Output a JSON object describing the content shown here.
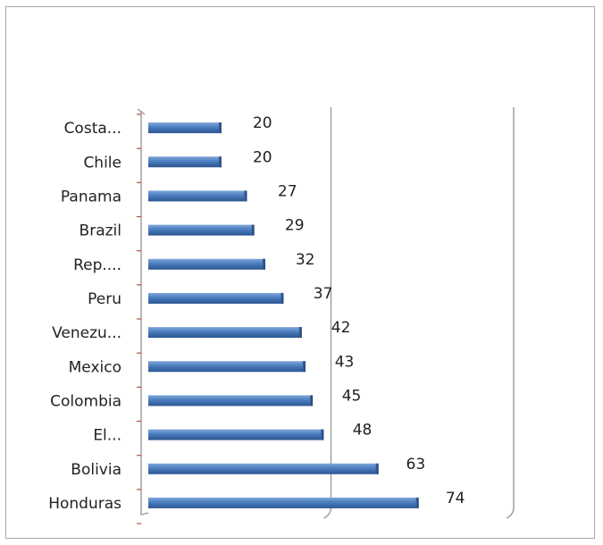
{
  "chart_data": {
    "type": "bar",
    "orientation": "horizontal",
    "categories": [
      "Costa...",
      "Chile",
      "Panama",
      "Brazil",
      "Rep....",
      "Peru",
      "Venezu...",
      "Mexico",
      "Colombia",
      "El...",
      "Bolivia",
      "Honduras"
    ],
    "values": [
      20,
      20,
      27,
      29,
      32,
      37,
      42,
      43,
      45,
      48,
      63,
      74
    ],
    "data_labels": [
      "20",
      "20",
      "27",
      "29",
      "32",
      "37",
      "42",
      "43",
      "45",
      "48",
      "63",
      "74"
    ],
    "xlim": [
      0,
      100
    ],
    "bar_color": "#4a7cbf",
    "grid": true,
    "legend": "none"
  }
}
